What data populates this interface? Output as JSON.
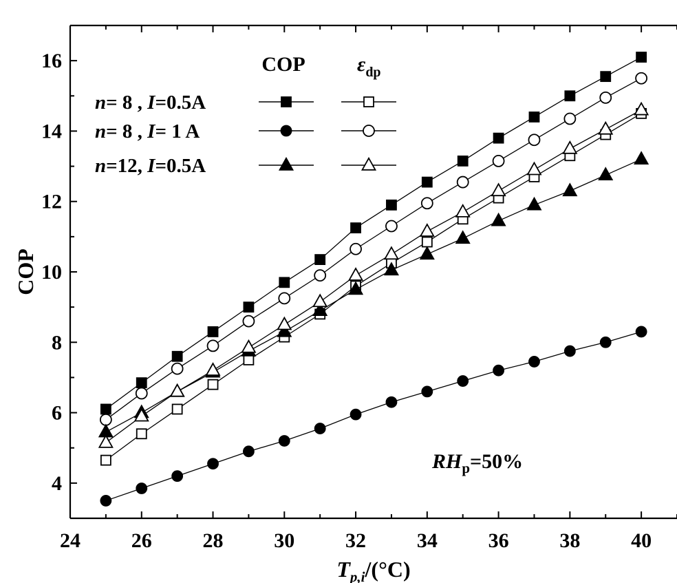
{
  "chart_data": {
    "type": "line",
    "xlabel": "T_p,i/(°C)",
    "ylabel": "COP",
    "xlim": [
      24,
      41
    ],
    "ylim": [
      3,
      17
    ],
    "x_ticks": [
      24,
      26,
      28,
      30,
      32,
      34,
      36,
      38,
      40
    ],
    "y_ticks": [
      4,
      6,
      8,
      10,
      12,
      14,
      16
    ],
    "x_tick_labels": [
      "24",
      "26",
      "28",
      "30",
      "32",
      "34",
      "36",
      "38",
      "40"
    ],
    "y_tick_labels": [
      "4",
      "6",
      "8",
      "10",
      "12",
      "14",
      "16"
    ],
    "grid": false,
    "legend_position": "top-left",
    "legend_headers": [
      "COP",
      "ε_dp"
    ],
    "legend_rows": [
      "n= 8 , I=0.5A",
      "n= 8 , I= 1 A",
      "n=12, I=0.5A"
    ],
    "annotation": "RH_p=50%",
    "x": [
      25,
      26,
      27,
      28,
      29,
      30,
      31,
      32,
      33,
      34,
      35,
      36,
      37,
      38,
      39,
      40
    ],
    "series": [
      {
        "legend_row": 0,
        "metric": "COP",
        "marker": "square",
        "filled": true,
        "values": [
          6.1,
          6.85,
          7.6,
          8.3,
          9.0,
          9.7,
          10.35,
          11.25,
          11.9,
          12.55,
          13.15,
          13.8,
          14.4,
          15.0,
          15.55,
          16.1
        ]
      },
      {
        "legend_row": 0,
        "metric": "ε_dp",
        "marker": "square",
        "filled": false,
        "values": [
          4.65,
          5.4,
          6.1,
          6.8,
          7.5,
          8.15,
          8.8,
          9.6,
          10.25,
          10.85,
          11.5,
          12.1,
          12.7,
          13.3,
          13.9,
          14.5
        ]
      },
      {
        "legend_row": 1,
        "metric": "COP",
        "marker": "circle",
        "filled": true,
        "values": [
          3.5,
          3.85,
          4.2,
          4.55,
          4.9,
          5.2,
          5.55,
          5.95,
          6.3,
          6.6,
          6.9,
          7.2,
          7.45,
          7.75,
          8.0,
          8.3
        ]
      },
      {
        "legend_row": 1,
        "metric": "ε_dp",
        "marker": "circle",
        "filled": false,
        "values": [
          5.8,
          6.55,
          7.25,
          7.9,
          8.6,
          9.25,
          9.9,
          10.65,
          11.3,
          11.95,
          12.55,
          13.15,
          13.75,
          14.35,
          14.95,
          15.5
        ]
      },
      {
        "legend_row": 2,
        "metric": "COP",
        "marker": "triangle",
        "filled": true,
        "values": [
          5.45,
          6.0,
          6.6,
          7.15,
          7.75,
          8.3,
          8.9,
          9.5,
          10.05,
          10.5,
          10.95,
          11.45,
          11.9,
          12.3,
          12.75,
          13.2
        ]
      },
      {
        "legend_row": 2,
        "metric": "ε_dp",
        "marker": "triangle",
        "filled": false,
        "values": [
          5.15,
          5.9,
          6.6,
          7.2,
          7.85,
          8.5,
          9.15,
          9.9,
          10.5,
          11.15,
          11.7,
          12.3,
          12.9,
          13.5,
          14.05,
          14.6
        ]
      }
    ]
  }
}
